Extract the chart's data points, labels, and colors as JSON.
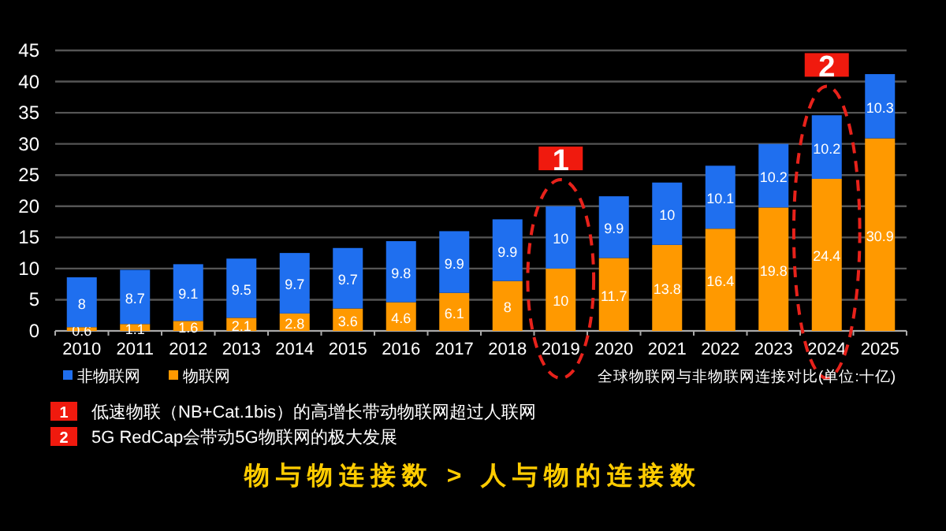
{
  "chart_data": {
    "type": "bar",
    "stacked": true,
    "title": "物与物连接数 > 人与物的连接数",
    "subtitle": "全球物联网与非物联网连接对比(单位:十亿)",
    "categories": [
      "2010",
      "2011",
      "2012",
      "2013",
      "2014",
      "2015",
      "2016",
      "2017",
      "2018",
      "2019",
      "2020",
      "2021",
      "2022",
      "2023",
      "2024",
      "2025"
    ],
    "series": [
      {
        "name": "物联网",
        "color": "#ff9900",
        "values": [
          0.6,
          1.1,
          1.6,
          2.1,
          2.8,
          3.6,
          4.6,
          6.1,
          8,
          10,
          11.7,
          13.8,
          16.4,
          19.8,
          24.4,
          30.9
        ]
      },
      {
        "name": "非物联网",
        "color": "#1f6fef",
        "values": [
          8,
          8.7,
          9.1,
          9.5,
          9.7,
          9.7,
          9.8,
          9.9,
          9.9,
          10,
          9.9,
          10,
          10.1,
          10.2,
          10.2,
          10.3
        ]
      }
    ],
    "ylim": [
      0,
      45
    ],
    "yticks": [
      0,
      5,
      10,
      15,
      20,
      25,
      30,
      35,
      40,
      45
    ],
    "grid": "y",
    "legend": "bottom left",
    "data_labels": true,
    "annotations": [
      {
        "text": "1",
        "x": "2019",
        "y": 27.8
      },
      {
        "text": "2",
        "x": "2024",
        "y": 42.8
      },
      "1 低速物联（NB+Cat.1bis）的高增长带动物联网超过人联网",
      "2 5G RedCap会带动5G物联网的极大发展"
    ]
  }
}
